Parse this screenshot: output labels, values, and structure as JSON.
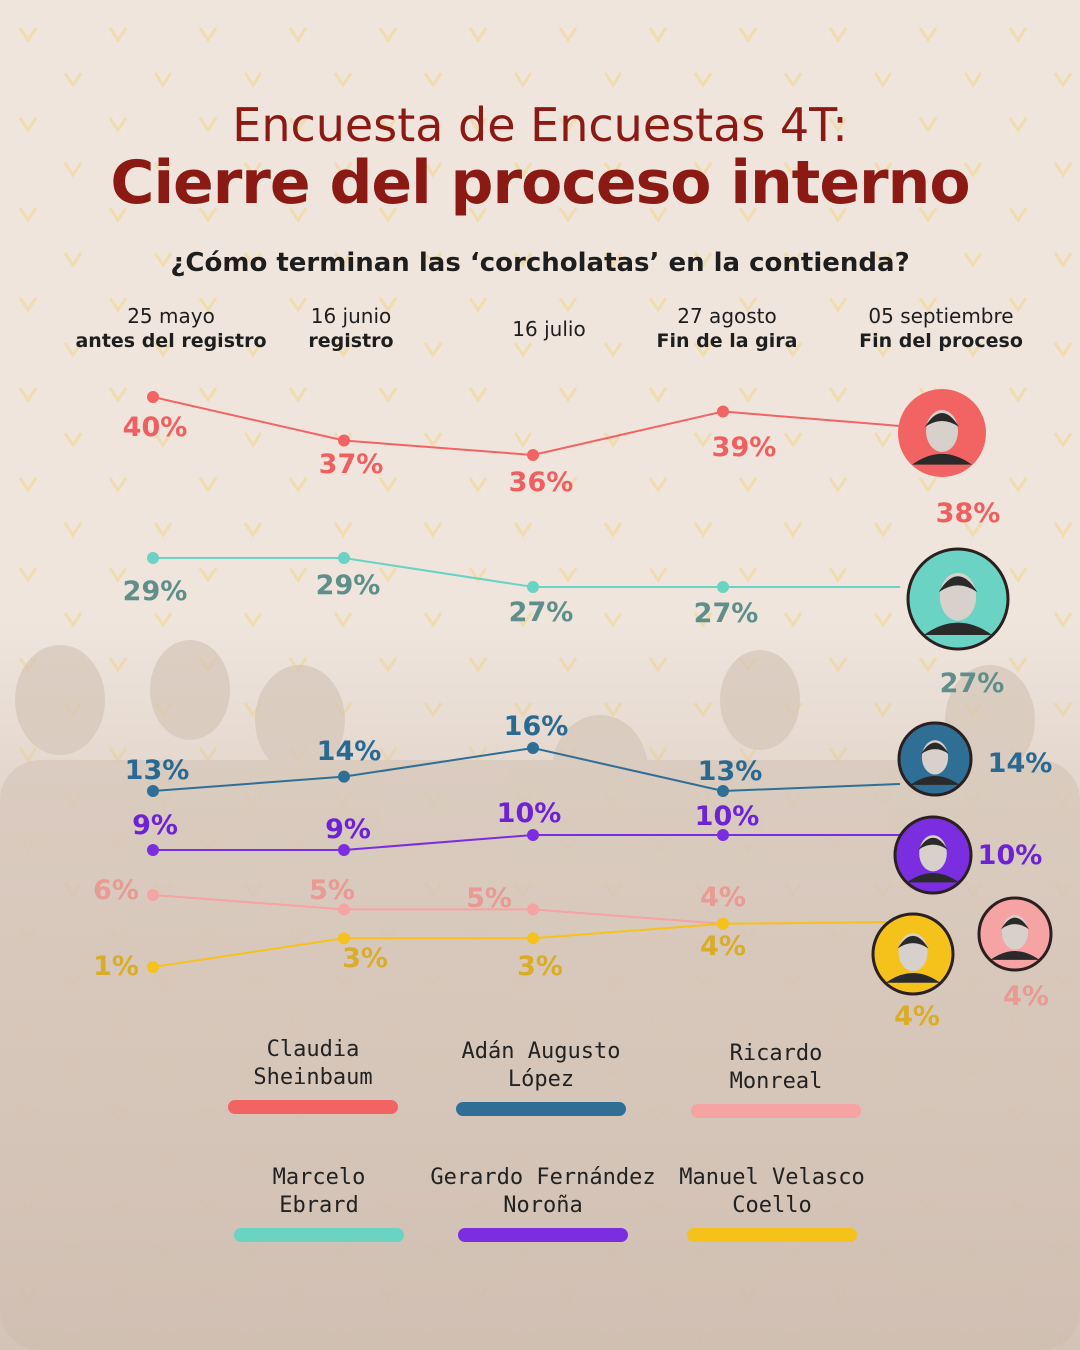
{
  "title": {
    "line1": "Encuesta de Encuestas 4T:",
    "line2": "Cierre del proceso interno"
  },
  "question": "¿Cómo terminan las ‘corcholatas’ en la contienda?",
  "chart_data": {
    "type": "line",
    "x": [
      {
        "date": "25 mayo",
        "stage": "antes del registro"
      },
      {
        "date": "16 junio",
        "stage": "registro"
      },
      {
        "date": "16 julio",
        "stage": ""
      },
      {
        "date": "27 agosto",
        "stage": "Fin de la gira"
      },
      {
        "date": "05 septiembre",
        "stage": "Fin del proceso"
      }
    ],
    "series": [
      {
        "name": "Claudia Sheinbaum",
        "color": "#f26464",
        "label_color": "#f05f5f",
        "values": [
          40,
          37,
          36,
          39,
          38
        ]
      },
      {
        "name": "Marcelo Ebrard",
        "color": "#6ad3c3",
        "label_color": "#5f8f8a",
        "values": [
          29,
          29,
          27,
          27,
          27
        ]
      },
      {
        "name": "Adán Augusto López",
        "color": "#2f6f96",
        "label_color": "#2a6a92",
        "values": [
          13,
          14,
          16,
          13,
          14
        ]
      },
      {
        "name": "Gerardo Fernández Noroña",
        "color": "#7a2ee0",
        "label_color": "#6d22d6",
        "values": [
          9,
          9,
          10,
          10,
          10
        ]
      },
      {
        "name": "Ricardo Monreal",
        "color": "#f5a3a3",
        "label_color": "#e89a94",
        "values": [
          6,
          5,
          5,
          4,
          4
        ]
      },
      {
        "name": "Manuel Velasco Coello",
        "color": "#f5c21b",
        "label_color": "#d9ac2a",
        "values": [
          1,
          3,
          3,
          4,
          4
        ]
      }
    ],
    "value_suffix": "%",
    "legend": [
      {
        "line1": "Claudia",
        "line2": "Sheinbaum",
        "color": "#f26464"
      },
      {
        "line1": "Adán Augusto",
        "line2": "López",
        "color": "#2f6f96"
      },
      {
        "line1": "Ricardo",
        "line2": "Monreal",
        "color": "#f5a3a3"
      },
      {
        "line1": "Marcelo",
        "line2": "Ebrard",
        "color": "#6ad3c3"
      },
      {
        "line1": "Gerardo Fernández",
        "line2": "Noroña",
        "color": "#7a2ee0"
      },
      {
        "line1": "Manuel Velasco",
        "line2": "Coello",
        "color": "#f5c21b"
      }
    ]
  }
}
